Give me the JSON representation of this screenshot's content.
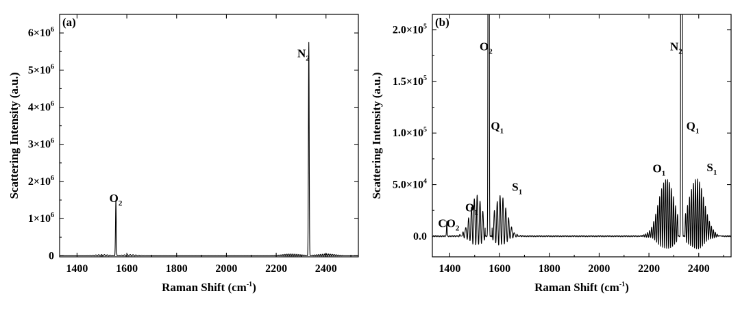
{
  "chart_data": [
    {
      "type": "line",
      "panel_label": "(a)",
      "xlabel_main": "Raman Shift (cm",
      "xlabel_sup": "-1",
      "xlabel_end": ")",
      "ylabel": "Scattering Intensity (a.u.)",
      "xlim": [
        1330,
        2530
      ],
      "ylim": [
        -30000,
        6500000
      ],
      "xticks": [
        1400,
        1600,
        1800,
        2000,
        2200,
        2400
      ],
      "yticks": [
        {
          "value": 0,
          "mant": "0",
          "exp": ""
        },
        {
          "value": 1000000,
          "mant": "1×10",
          "exp": "6"
        },
        {
          "value": 2000000,
          "mant": "2×10",
          "exp": "6"
        },
        {
          "value": 3000000,
          "mant": "3×10",
          "exp": "6"
        },
        {
          "value": 4000000,
          "mant": "4×10",
          "exp": "6"
        },
        {
          "value": 5000000,
          "mant": "5×10",
          "exp": "6"
        },
        {
          "value": 6000000,
          "mant": "6×10",
          "exp": "6"
        }
      ],
      "peaks": [
        {
          "x": 1556,
          "height": 1500000,
          "width": 1.5
        },
        {
          "x": 2331,
          "height": 5750000,
          "width": 1.5
        }
      ],
      "rot_bands": [
        {
          "center": 1556,
          "from": 1440,
          "to": 1680,
          "spacing": 11.5,
          "max": 40000,
          "sigma": 55
        },
        {
          "center": 2331,
          "from": 2180,
          "to": 2470,
          "spacing": 8,
          "max": 60000,
          "sigma": 70
        }
      ],
      "annotations": [
        {
          "base": "O",
          "sub": "2",
          "x": 1530,
          "y": 1450000
        },
        {
          "base": "N",
          "sub": "2",
          "x": 2285,
          "y": 5350000
        }
      ]
    },
    {
      "type": "line",
      "panel_label": "(b)",
      "xlabel_main": "Raman Shift (cm",
      "xlabel_sup": "-1",
      "xlabel_end": ")",
      "ylabel": "Scattering Intensity (a.u.)",
      "xlim": [
        1330,
        2530
      ],
      "ylim": [
        -20000,
        215000
      ],
      "xticks": [
        1400,
        1600,
        1800,
        2000,
        2200,
        2400
      ],
      "yticks": [
        {
          "value": 0,
          "mant": "0.0",
          "exp": ""
        },
        {
          "value": 50000,
          "mant": "5.0×10",
          "exp": "4"
        },
        {
          "value": 100000,
          "mant": "1.0×10",
          "exp": "5"
        },
        {
          "value": 150000,
          "mant": "1.5×10",
          "exp": "5"
        },
        {
          "value": 200000,
          "mant": "2.0×10",
          "exp": "5"
        }
      ],
      "peaks": [
        {
          "x": 1388,
          "height": 15000,
          "width": 1.2
        },
        {
          "x": 1556,
          "height": 1500000,
          "width": 1.5
        },
        {
          "x": 2331,
          "height": 5750000,
          "width": 1.5
        }
      ],
      "rot_bands": [
        {
          "center": 1556,
          "from": 1410,
          "to": 1700,
          "spacing": 11.5,
          "max": 48000,
          "sigma": 48
        },
        {
          "center": 2331,
          "from": 2160,
          "to": 2500,
          "spacing": 8,
          "max": 68000,
          "sigma": 60
        }
      ],
      "annotations": [
        {
          "base": "CO",
          "sub": "2",
          "x": 1353,
          "y": 9000
        },
        {
          "base": "O",
          "sub": "1",
          "x": 1462,
          "y": 24000
        },
        {
          "base": "O",
          "sub": "2",
          "x": 1520,
          "y": 180000
        },
        {
          "base": "Q",
          "sub": "1",
          "x": 1565,
          "y": 103000
        },
        {
          "base": "S",
          "sub": "1",
          "x": 1650,
          "y": 44000
        },
        {
          "base": "O",
          "sub": "1",
          "x": 2215,
          "y": 62000
        },
        {
          "base": "N",
          "sub": "2",
          "x": 2285,
          "y": 180000
        },
        {
          "base": "Q",
          "sub": "1",
          "x": 2350,
          "y": 103000
        },
        {
          "base": "S",
          "sub": "1",
          "x": 2432,
          "y": 63000
        }
      ]
    }
  ]
}
